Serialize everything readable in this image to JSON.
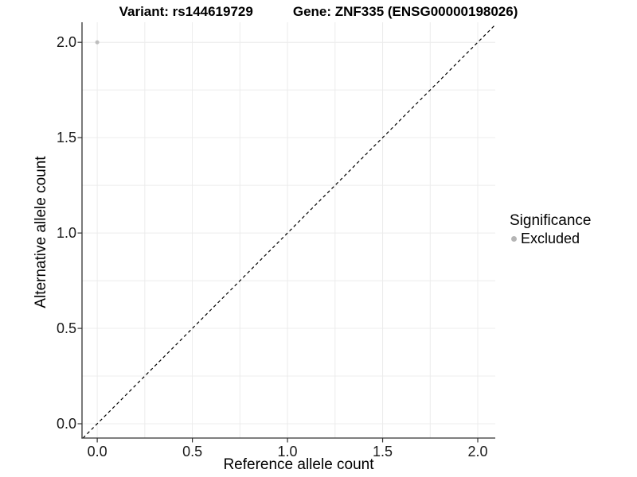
{
  "title": {
    "variant": "Variant: rs144619729",
    "gene": "Gene: ZNF335 (ENSG00000198026)"
  },
  "chart_data": {
    "type": "scatter",
    "title": "Variant: rs144619729   Gene: ZNF335 (ENSG00000198026)",
    "xlabel": "Reference allele count",
    "ylabel": "Alternative allele count",
    "x_tick_labels": [
      "0.0",
      "0.5",
      "1.0",
      "1.5",
      "2.0"
    ],
    "x_tick_values": [
      0.0,
      0.5,
      1.0,
      1.5,
      2.0
    ],
    "y_tick_labels": [
      "0.0",
      "0.5",
      "1.0",
      "1.5",
      "2.0"
    ],
    "y_tick_values": [
      0.0,
      0.5,
      1.0,
      1.5,
      2.0
    ],
    "xlim": [
      -0.08,
      2.092
    ],
    "ylim": [
      -0.075,
      2.105
    ],
    "grid": true,
    "grid_step": 0.25,
    "grid_range": [
      0.0,
      2.0
    ],
    "series": [
      {
        "name": "Excluded",
        "color": "#bdbdbd",
        "marker": "circle",
        "points": [
          {
            "x": 0.0,
            "y": 2.0
          }
        ]
      }
    ],
    "reference_line": {
      "kind": "identity",
      "style": "dashed",
      "color": "#000000"
    },
    "legend": {
      "position": "right",
      "title": "Significance",
      "items": [
        {
          "label": "Excluded",
          "color": "#b5b5b5"
        }
      ]
    }
  },
  "colors": {
    "background": "#ffffff",
    "grid": "#ececec",
    "axis": "#333333",
    "tick": "#333333",
    "tick_label": "#1a1a1a",
    "title": "#000000"
  }
}
